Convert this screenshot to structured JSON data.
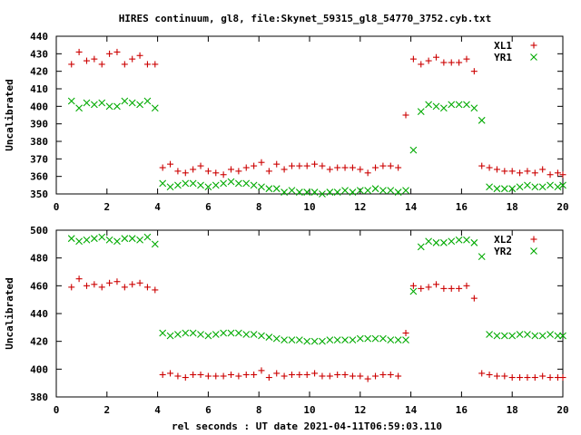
{
  "chart_data": {
    "title": "HIRES continuum, gl8, file:Skynet_59315_gl8_54770_3752.cyb.txt",
    "xlabel": "rel seconds : UT date 2021-04-11T06:59:03.110",
    "panels": [
      {
        "type": "scatter",
        "ylabel": "Uncalibrated",
        "xlim": [
          0,
          20
        ],
        "ylim": [
          350,
          440
        ],
        "xticks": [
          0,
          2,
          4,
          6,
          8,
          10,
          12,
          14,
          16,
          18,
          20
        ],
        "yticks": [
          350,
          360,
          370,
          380,
          390,
          400,
          410,
          420,
          430,
          440
        ],
        "legend_position": "top-right",
        "series": [
          {
            "name": "XL1",
            "marker": "+",
            "color": "#cc0000",
            "x": [
              0.6,
              0.9,
              1.2,
              1.5,
              1.8,
              2.1,
              2.4,
              2.7,
              3.0,
              3.3,
              3.6,
              3.9,
              4.2,
              4.5,
              4.8,
              5.1,
              5.4,
              5.7,
              6.0,
              6.3,
              6.6,
              6.9,
              7.2,
              7.5,
              7.8,
              8.1,
              8.4,
              8.7,
              9.0,
              9.3,
              9.6,
              9.9,
              10.2,
              10.5,
              10.8,
              11.1,
              11.4,
              11.7,
              12.0,
              12.3,
              12.6,
              12.9,
              13.2,
              13.5,
              13.8,
              14.1,
              14.4,
              14.7,
              15.0,
              15.3,
              15.6,
              15.9,
              16.2,
              16.5,
              16.8,
              17.1,
              17.4,
              17.7,
              18.0,
              18.3,
              18.6,
              18.9,
              19.2,
              19.5,
              19.8,
              20.0
            ],
            "y": [
              424,
              431,
              426,
              427,
              424,
              430,
              431,
              424,
              427,
              429,
              424,
              424,
              365,
              367,
              363,
              362,
              364,
              366,
              363,
              362,
              361,
              364,
              363,
              365,
              366,
              368,
              363,
              367,
              364,
              366,
              366,
              366,
              367,
              366,
              364,
              365,
              365,
              365,
              364,
              362,
              365,
              366,
              366,
              365,
              395,
              427,
              424,
              426,
              428,
              425,
              425,
              425,
              427,
              420,
              366,
              365,
              364,
              363,
              363,
              362,
              363,
              362,
              364,
              361,
              362,
              361
            ]
          },
          {
            "name": "YR1",
            "marker": "x",
            "color": "#00aa00",
            "x": [
              0.6,
              0.9,
              1.2,
              1.5,
              1.8,
              2.1,
              2.4,
              2.7,
              3.0,
              3.3,
              3.6,
              3.9,
              4.2,
              4.5,
              4.8,
              5.1,
              5.4,
              5.7,
              6.0,
              6.3,
              6.6,
              6.9,
              7.2,
              7.5,
              7.8,
              8.1,
              8.4,
              8.7,
              9.0,
              9.3,
              9.6,
              9.9,
              10.2,
              10.5,
              10.8,
              11.1,
              11.4,
              11.7,
              12.0,
              12.3,
              12.6,
              12.9,
              13.2,
              13.5,
              13.8,
              14.1,
              14.4,
              14.7,
              15.0,
              15.3,
              15.6,
              15.9,
              16.2,
              16.5,
              16.8,
              17.1,
              17.4,
              17.7,
              18.0,
              18.3,
              18.6,
              18.9,
              19.2,
              19.5,
              19.8,
              20.0
            ],
            "y": [
              403,
              399,
              402,
              401,
              402,
              400,
              400,
              403,
              402,
              401,
              403,
              399,
              356,
              354,
              355,
              356,
              356,
              355,
              354,
              355,
              356,
              357,
              356,
              356,
              355,
              354,
              353,
              353,
              351,
              352,
              351,
              351,
              351,
              350,
              351,
              351,
              352,
              351,
              352,
              352,
              353,
              352,
              352,
              351,
              352,
              375,
              397,
              401,
              400,
              399,
              401,
              401,
              401,
              399,
              392,
              354,
              353,
              353,
              353,
              354,
              355,
              354,
              354,
              355,
              354,
              355
            ]
          }
        ]
      },
      {
        "type": "scatter",
        "ylabel": "Uncalibrated",
        "xlim": [
          0,
          20
        ],
        "ylim": [
          380,
          500
        ],
        "xticks": [
          0,
          2,
          4,
          6,
          8,
          10,
          12,
          14,
          16,
          18,
          20
        ],
        "yticks": [
          380,
          400,
          420,
          440,
          460,
          480,
          500
        ],
        "legend_position": "top-right",
        "series": [
          {
            "name": "XL2",
            "marker": "+",
            "color": "#cc0000",
            "x": [
              0.6,
              0.9,
              1.2,
              1.5,
              1.8,
              2.1,
              2.4,
              2.7,
              3.0,
              3.3,
              3.6,
              3.9,
              4.2,
              4.5,
              4.8,
              5.1,
              5.4,
              5.7,
              6.0,
              6.3,
              6.6,
              6.9,
              7.2,
              7.5,
              7.8,
              8.1,
              8.4,
              8.7,
              9.0,
              9.3,
              9.6,
              9.9,
              10.2,
              10.5,
              10.8,
              11.1,
              11.4,
              11.7,
              12.0,
              12.3,
              12.6,
              12.9,
              13.2,
              13.5,
              13.8,
              14.1,
              14.4,
              14.7,
              15.0,
              15.3,
              15.6,
              15.9,
              16.2,
              16.5,
              16.8,
              17.1,
              17.4,
              17.7,
              18.0,
              18.3,
              18.6,
              18.9,
              19.2,
              19.5,
              19.8,
              20.0
            ],
            "y": [
              459,
              465,
              460,
              461,
              459,
              462,
              463,
              459,
              461,
              462,
              459,
              457,
              396,
              397,
              395,
              394,
              396,
              396,
              395,
              395,
              395,
              396,
              395,
              396,
              396,
              399,
              394,
              397,
              395,
              396,
              396,
              396,
              397,
              395,
              395,
              396,
              396,
              395,
              395,
              393,
              395,
              396,
              396,
              395,
              426,
              460,
              458,
              459,
              461,
              458,
              458,
              458,
              460,
              451,
              397,
              396,
              395,
              395,
              394,
              394,
              394,
              394,
              395,
              394,
              394,
              394
            ]
          },
          {
            "name": "YR2",
            "marker": "x",
            "color": "#00aa00",
            "x": [
              0.6,
              0.9,
              1.2,
              1.5,
              1.8,
              2.1,
              2.4,
              2.7,
              3.0,
              3.3,
              3.6,
              3.9,
              4.2,
              4.5,
              4.8,
              5.1,
              5.4,
              5.7,
              6.0,
              6.3,
              6.6,
              6.9,
              7.2,
              7.5,
              7.8,
              8.1,
              8.4,
              8.7,
              9.0,
              9.3,
              9.6,
              9.9,
              10.2,
              10.5,
              10.8,
              11.1,
              11.4,
              11.7,
              12.0,
              12.3,
              12.6,
              12.9,
              13.2,
              13.5,
              13.8,
              14.1,
              14.4,
              14.7,
              15.0,
              15.3,
              15.6,
              15.9,
              16.2,
              16.5,
              16.8,
              17.1,
              17.4,
              17.7,
              18.0,
              18.3,
              18.6,
              18.9,
              19.2,
              19.5,
              19.8,
              20.0
            ],
            "y": [
              494,
              492,
              493,
              494,
              495,
              493,
              492,
              494,
              494,
              493,
              495,
              490,
              426,
              424,
              425,
              426,
              426,
              425,
              424,
              425,
              426,
              426,
              426,
              425,
              425,
              424,
              423,
              422,
              421,
              421,
              421,
              420,
              420,
              420,
              421,
              421,
              421,
              421,
              422,
              422,
              422,
              422,
              421,
              421,
              421,
              456,
              488,
              492,
              491,
              491,
              492,
              493,
              493,
              491,
              481,
              425,
              424,
              424,
              424,
              425,
              425,
              424,
              424,
              425,
              424,
              424
            ]
          }
        ]
      }
    ]
  }
}
